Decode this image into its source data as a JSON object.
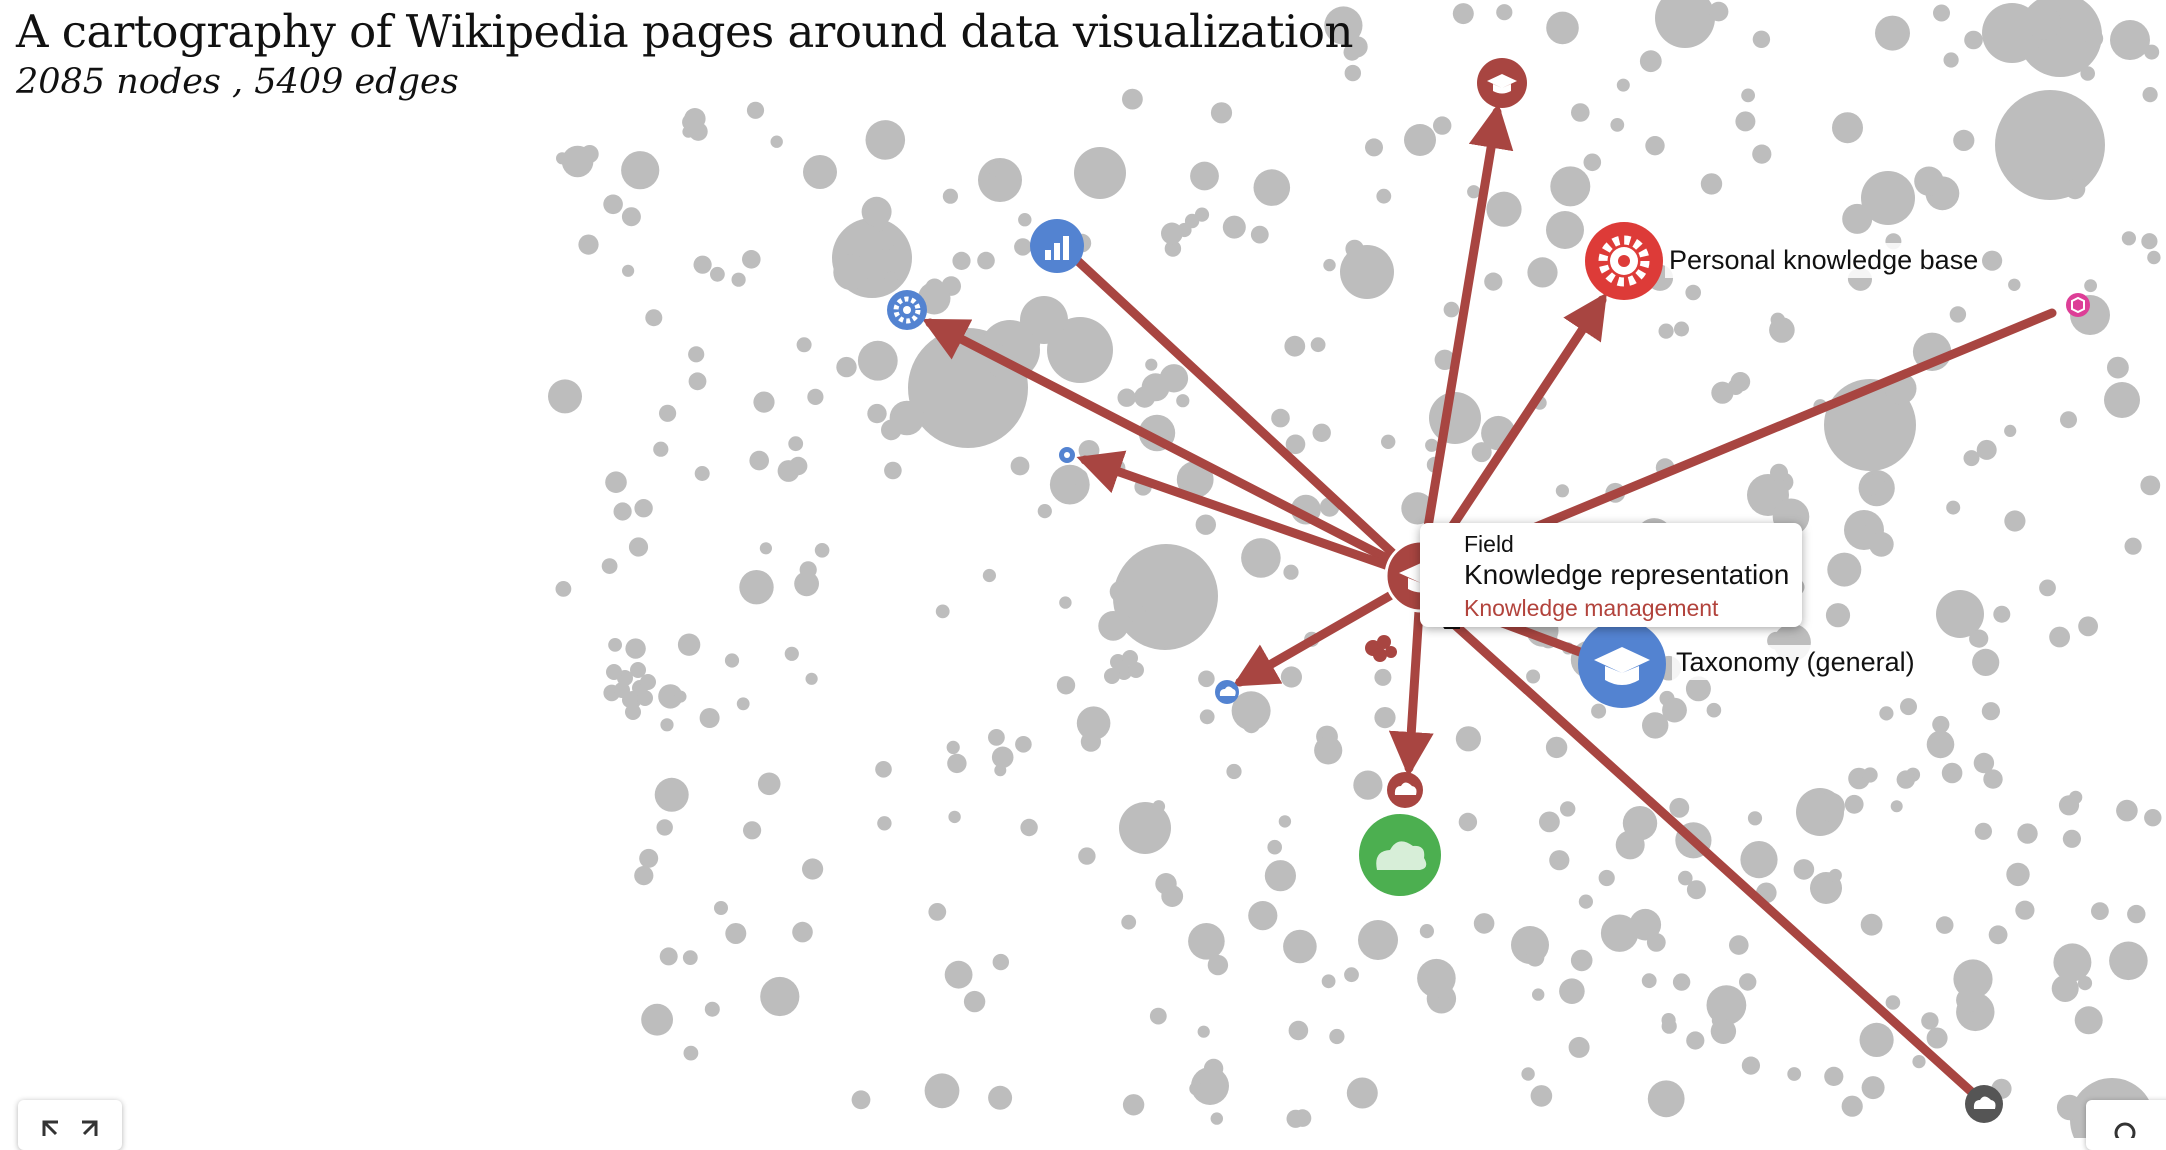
{
  "title": "A cartography of Wikipedia pages around data visualization",
  "stats": "2085 nodes , 5409 edges",
  "tooltip": {
    "category": "Field",
    "name": "Knowledge representation",
    "parent": "Knowledge management"
  },
  "labels": {
    "personal_kb": "Personal knowledge base",
    "taxonomy": "Taxonomy (general)"
  },
  "colors": {
    "edge": "#a84541",
    "background_node": "#bdbdbd",
    "field": "#a84541",
    "method": "#5383d1",
    "company": "#dd3b38",
    "cloud": "#4caf50",
    "cube": "#dd3e97",
    "dark": "#555555"
  },
  "icons": {
    "focus_node": "graduation-cap-icon",
    "expand_control": "expand-arrows-icon",
    "search_control": "search-icon"
  }
}
